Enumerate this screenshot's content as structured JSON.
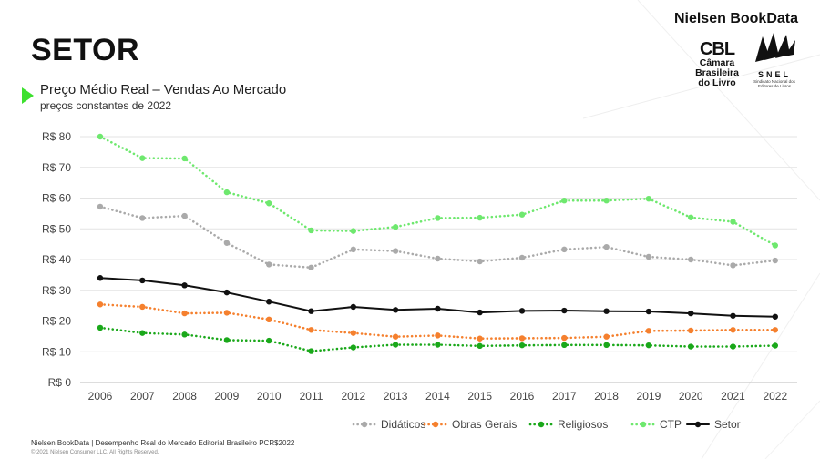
{
  "header": {
    "brand": "Nielsen BookData",
    "cbl_mark": "CBL",
    "cbl_name": "Câmara Brasileira do Livro",
    "snel_name": "SNEL",
    "snel_sub": "Sindicato Nacional dos Editores de Livros"
  },
  "page_title": "SETOR",
  "chart_title": "Preço Médio Real – Vendas Ao Mercado",
  "chart_subtitle": "preços constantes de 2022",
  "footer": {
    "source": "Nielsen BookData |  Desempenho Real do Mercado Editorial Brasileiro PCR$2022",
    "copyright": "© 2021 Nielsen Consumer LLC. All Rights Reserved."
  },
  "colors": {
    "didaticos": "#aaaaaa",
    "obras_gerais": "#f5802e",
    "religiosos": "#1aa81a",
    "ctp": "#6ee86e",
    "setor": "#111111",
    "accent": "#3de02f"
  },
  "chart_data": {
    "type": "line",
    "categories": [
      "2006",
      "2007",
      "2008",
      "2009",
      "2010",
      "2011",
      "2012",
      "2013",
      "2014",
      "2015",
      "2016",
      "2017",
      "2018",
      "2019",
      "2020",
      "2021",
      "2022"
    ],
    "ylim": [
      0,
      80
    ],
    "yticks": [
      0,
      10,
      20,
      30,
      40,
      50,
      60,
      70,
      80
    ],
    "ytick_labels": [
      "R$ 0",
      "R$ 10",
      "R$ 20",
      "R$ 30",
      "R$ 40",
      "R$ 50",
      "R$ 60",
      "R$ 70",
      "R$ 80"
    ],
    "legend_position": "bottom-right",
    "series": [
      {
        "key": "didaticos",
        "name": "Didáticos",
        "style": "dotted",
        "values": [
          57.2,
          53.5,
          54.2,
          45.4,
          38.4,
          37.4,
          43.3,
          42.8,
          40.3,
          39.4,
          40.6,
          43.3,
          44.1,
          40.9,
          40.0,
          38.1,
          39.7
        ]
      },
      {
        "key": "obras_gerais",
        "name": "Obras Gerais",
        "style": "dotted",
        "values": [
          25.4,
          24.6,
          22.5,
          22.7,
          20.5,
          17.1,
          16.1,
          14.9,
          15.3,
          14.3,
          14.4,
          14.5,
          14.9,
          16.8,
          16.9,
          17.1,
          17.1
        ]
      },
      {
        "key": "religiosos",
        "name": "Religiosos",
        "style": "dotted",
        "values": [
          17.8,
          16.1,
          15.6,
          13.8,
          13.6,
          10.2,
          11.4,
          12.3,
          12.3,
          11.9,
          12.1,
          12.2,
          12.2,
          12.1,
          11.7,
          11.7,
          12.0
        ]
      },
      {
        "key": "ctp",
        "name": "CTP",
        "style": "dotted",
        "values": [
          80.0,
          73.0,
          72.9,
          61.9,
          58.3,
          49.5,
          49.3,
          50.6,
          53.5,
          53.6,
          54.6,
          59.2,
          59.2,
          59.8,
          53.7,
          52.3,
          44.6
        ]
      },
      {
        "key": "setor",
        "name": "Setor",
        "style": "solid",
        "values": [
          34.0,
          33.2,
          31.6,
          29.3,
          26.3,
          23.2,
          24.6,
          23.6,
          24.0,
          22.8,
          23.3,
          23.4,
          23.2,
          23.1,
          22.5,
          21.7,
          21.4
        ]
      }
    ]
  }
}
